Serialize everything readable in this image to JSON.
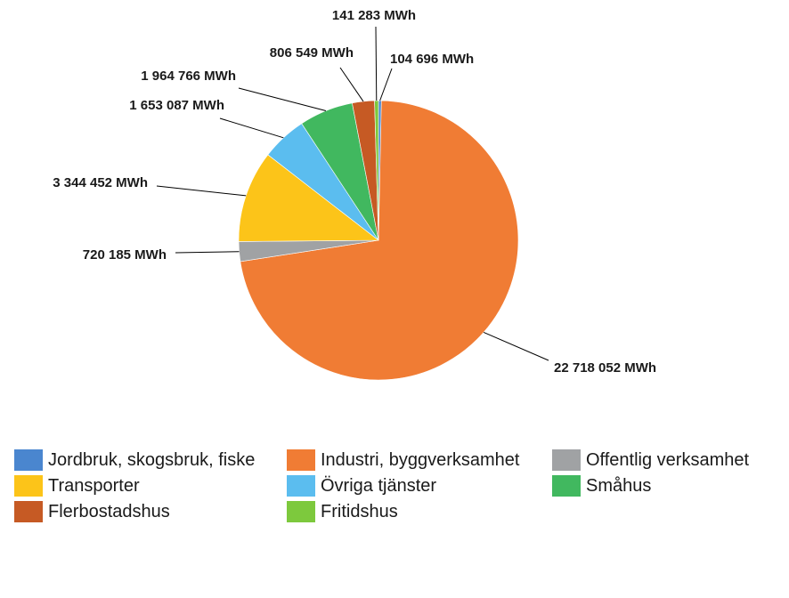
{
  "chart_data": {
    "type": "pie",
    "title": "",
    "start_angle_deg": 0,
    "direction": "clockwise",
    "legend_position": "bottom",
    "slices": [
      {
        "name": "Jordbruk, skogsbruk, fiske",
        "value": 104696,
        "label": "104 696 MWh",
        "color": "#4a86cf"
      },
      {
        "name": "Industri, byggverksamhet",
        "value": 22718052,
        "label": "22 718 052 MWh",
        "color": "#f07c34"
      },
      {
        "name": "Offentlig verksamhet",
        "value": 720185,
        "label": "720 185 MWh",
        "color": "#a0a2a4"
      },
      {
        "name": "Transporter",
        "value": 3344452,
        "label": "3 344 452 MWh",
        "color": "#fcc419"
      },
      {
        "name": "Övriga tjänster",
        "value": 1653087,
        "label": "1 653 087 MWh",
        "color": "#5bbdef"
      },
      {
        "name": "Småhus",
        "value": 1964766,
        "label": "1 964 766 MWh",
        "color": "#41b85f"
      },
      {
        "name": "Flerbostadshus",
        "value": 806549,
        "label": "806 549 MWh",
        "color": "#c65a24"
      },
      {
        "name": "Fritidshus",
        "value": 141283,
        "label": "141 283 MWh",
        "color": "#7dc93d"
      }
    ]
  }
}
